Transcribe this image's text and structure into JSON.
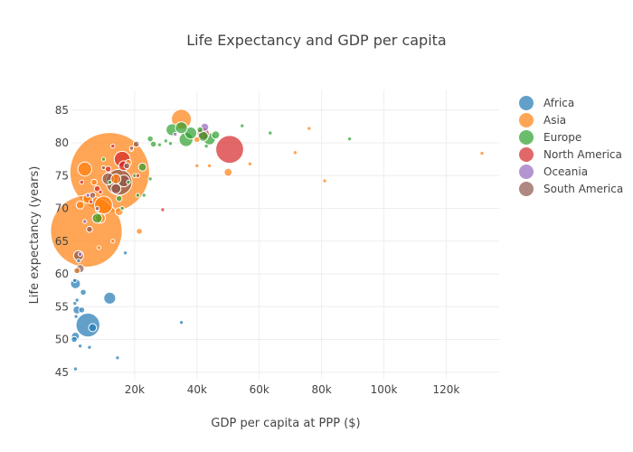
{
  "chart_data": {
    "type": "scatter",
    "title": "Life Expectancy and GDP per capita",
    "xlabel": "GDP per capita at PPP ($)",
    "ylabel": "Life expectancy (years)",
    "xlim": [
      0,
      137000
    ],
    "ylim": [
      44,
      88
    ],
    "x_ticks": [
      20000,
      40000,
      60000,
      80000,
      100000,
      120000
    ],
    "x_tick_labels": [
      "20k",
      "40k",
      "60k",
      "80k",
      "100k",
      "120k"
    ],
    "y_ticks": [
      45,
      50,
      55,
      60,
      65,
      70,
      75,
      80,
      85
    ],
    "y_tick_labels": [
      "45",
      "50",
      "55",
      "60",
      "65",
      "70",
      "75",
      "80",
      "85"
    ],
    "grid": true,
    "legend_position": "right",
    "series": [
      {
        "name": "Africa",
        "color": "#1f77b4",
        "points": [
          {
            "x": 5000,
            "y": 52.2,
            "s": 12
          },
          {
            "x": 12000,
            "y": 56.3,
            "s": 6
          },
          {
            "x": 1000,
            "y": 58.5,
            "s": 5
          },
          {
            "x": 1500,
            "y": 54.5,
            "s": 4
          },
          {
            "x": 1000,
            "y": 50.5,
            "s": 4
          },
          {
            "x": 6500,
            "y": 51.8,
            "s": 4
          },
          {
            "x": 3500,
            "y": 57.2,
            "s": 3
          },
          {
            "x": 1000,
            "y": 45.5,
            "s": 2
          },
          {
            "x": 2500,
            "y": 49.0,
            "s": 2
          },
          {
            "x": 5500,
            "y": 48.8,
            "s": 2
          },
          {
            "x": 14500,
            "y": 47.2,
            "s": 2
          },
          {
            "x": 35000,
            "y": 52.6,
            "s": 2
          },
          {
            "x": 17000,
            "y": 63.2,
            "s": 2
          },
          {
            "x": 1500,
            "y": 60.5,
            "s": 3
          },
          {
            "x": 800,
            "y": 55.5,
            "s": 2
          },
          {
            "x": 1200,
            "y": 53.5,
            "s": 2
          },
          {
            "x": 600,
            "y": 50.0,
            "s": 3
          },
          {
            "x": 2000,
            "y": 62.0,
            "s": 2
          },
          {
            "x": 3000,
            "y": 54.5,
            "s": 3
          },
          {
            "x": 800,
            "y": 59.0,
            "s": 2
          },
          {
            "x": 1500,
            "y": 56.0,
            "s": 2
          }
        ]
      },
      {
        "name": "Asia",
        "color": "#ff7f0e",
        "points": [
          {
            "x": 12000,
            "y": 75.5,
            "s": 40
          },
          {
            "x": 4500,
            "y": 66.5,
            "s": 36
          },
          {
            "x": 10000,
            "y": 70.5,
            "s": 9
          },
          {
            "x": 35000,
            "y": 83.6,
            "s": 10
          },
          {
            "x": 4000,
            "y": 76.0,
            "s": 7
          },
          {
            "x": 9000,
            "y": 68.5,
            "s": 5
          },
          {
            "x": 5000,
            "y": 71.5,
            "s": 5
          },
          {
            "x": 15000,
            "y": 69.5,
            "s": 4
          },
          {
            "x": 14000,
            "y": 74.5,
            "s": 5
          },
          {
            "x": 2500,
            "y": 70.5,
            "s": 4
          },
          {
            "x": 1500,
            "y": 60.5,
            "s": 3
          },
          {
            "x": 50000,
            "y": 75.5,
            "s": 4
          },
          {
            "x": 21500,
            "y": 66.5,
            "s": 3
          },
          {
            "x": 40000,
            "y": 76.5,
            "s": 2
          },
          {
            "x": 44000,
            "y": 76.5,
            "s": 2
          },
          {
            "x": 57000,
            "y": 76.8,
            "s": 2
          },
          {
            "x": 71500,
            "y": 78.5,
            "s": 2
          },
          {
            "x": 76000,
            "y": 82.2,
            "s": 2
          },
          {
            "x": 81000,
            "y": 74.2,
            "s": 2
          },
          {
            "x": 131500,
            "y": 78.4,
            "s": 2
          },
          {
            "x": 40000,
            "y": 80.5,
            "s": 3
          },
          {
            "x": 13000,
            "y": 65.0,
            "s": 2
          },
          {
            "x": 8500,
            "y": 64.0,
            "s": 2
          },
          {
            "x": 7000,
            "y": 74.0,
            "s": 3
          },
          {
            "x": 18000,
            "y": 77.0,
            "s": 3
          }
        ]
      },
      {
        "name": "Europe",
        "color": "#2ca02c",
        "points": [
          {
            "x": 8000,
            "y": 68.5,
            "s": 5
          },
          {
            "x": 32000,
            "y": 82.0,
            "s": 6
          },
          {
            "x": 36500,
            "y": 80.5,
            "s": 7
          },
          {
            "x": 38000,
            "y": 81.5,
            "s": 6
          },
          {
            "x": 35000,
            "y": 82.3,
            "s": 6
          },
          {
            "x": 44000,
            "y": 80.6,
            "s": 6
          },
          {
            "x": 42000,
            "y": 81.0,
            "s": 5
          },
          {
            "x": 46000,
            "y": 81.2,
            "s": 4
          },
          {
            "x": 22500,
            "y": 76.3,
            "s": 4
          },
          {
            "x": 25000,
            "y": 80.6,
            "s": 3
          },
          {
            "x": 26000,
            "y": 79.8,
            "s": 3
          },
          {
            "x": 28000,
            "y": 79.7,
            "s": 2
          },
          {
            "x": 31500,
            "y": 79.9,
            "s": 2
          },
          {
            "x": 41000,
            "y": 82.0,
            "s": 3
          },
          {
            "x": 43000,
            "y": 79.5,
            "s": 2
          },
          {
            "x": 54500,
            "y": 82.6,
            "s": 2
          },
          {
            "x": 63500,
            "y": 81.5,
            "s": 2
          },
          {
            "x": 89000,
            "y": 80.6,
            "s": 2
          },
          {
            "x": 20000,
            "y": 75.0,
            "s": 2
          },
          {
            "x": 23000,
            "y": 72.0,
            "s": 2
          },
          {
            "x": 25000,
            "y": 74.5,
            "s": 2
          },
          {
            "x": 18000,
            "y": 74.0,
            "s": 2
          },
          {
            "x": 15000,
            "y": 71.5,
            "s": 3
          },
          {
            "x": 21000,
            "y": 72.0,
            "s": 2
          },
          {
            "x": 10000,
            "y": 77.5,
            "s": 2
          },
          {
            "x": 12000,
            "y": 74.0,
            "s": 2
          },
          {
            "x": 16000,
            "y": 70.0,
            "s": 2
          },
          {
            "x": 30000,
            "y": 80.3,
            "s": 2
          }
        ]
      },
      {
        "name": "North America",
        "color": "#d62728",
        "points": [
          {
            "x": 50500,
            "y": 79.0,
            "s": 14
          },
          {
            "x": 42000,
            "y": 81.4,
            "s": 6
          },
          {
            "x": 16000,
            "y": 77.5,
            "s": 8
          },
          {
            "x": 11500,
            "y": 76.0,
            "s": 3
          },
          {
            "x": 16500,
            "y": 76.5,
            "s": 5
          },
          {
            "x": 8000,
            "y": 73.0,
            "s": 3
          },
          {
            "x": 6000,
            "y": 71.0,
            "s": 2
          },
          {
            "x": 3000,
            "y": 74.0,
            "s": 2
          },
          {
            "x": 29000,
            "y": 69.8,
            "s": 2
          },
          {
            "x": 21000,
            "y": 75.0,
            "s": 2
          },
          {
            "x": 13000,
            "y": 79.5,
            "s": 2
          },
          {
            "x": 19000,
            "y": 79.0,
            "s": 2
          },
          {
            "x": 9000,
            "y": 72.5,
            "s": 2
          }
        ]
      },
      {
        "name": "Oceania",
        "color": "#9467bd",
        "points": [
          {
            "x": 42500,
            "y": 82.4,
            "s": 4
          },
          {
            "x": 33000,
            "y": 81.3,
            "s": 2
          },
          {
            "x": 2500,
            "y": 63.0,
            "s": 2
          },
          {
            "x": 8000,
            "y": 69.8,
            "s": 2
          },
          {
            "x": 5000,
            "y": 72.0,
            "s": 2
          },
          {
            "x": 4000,
            "y": 68.0,
            "s": 2
          }
        ]
      },
      {
        "name": "South America",
        "color": "#8c564b",
        "points": [
          {
            "x": 15000,
            "y": 74.0,
            "s": 13
          },
          {
            "x": 11500,
            "y": 74.5,
            "s": 6
          },
          {
            "x": 16500,
            "y": 74.2,
            "s": 6
          },
          {
            "x": 14000,
            "y": 73.0,
            "s": 5
          },
          {
            "x": 20500,
            "y": 79.8,
            "s": 3
          },
          {
            "x": 17500,
            "y": 76.5,
            "s": 3
          },
          {
            "x": 10000,
            "y": 76.2,
            "s": 2
          },
          {
            "x": 6500,
            "y": 72.0,
            "s": 3
          },
          {
            "x": 2000,
            "y": 62.8,
            "s": 5
          },
          {
            "x": 2500,
            "y": 60.8,
            "s": 4
          },
          {
            "x": 5500,
            "y": 66.8,
            "s": 3
          },
          {
            "x": 19000,
            "y": 79.2,
            "s": 2
          },
          {
            "x": 8000,
            "y": 70.0,
            "s": 2
          }
        ]
      }
    ]
  }
}
